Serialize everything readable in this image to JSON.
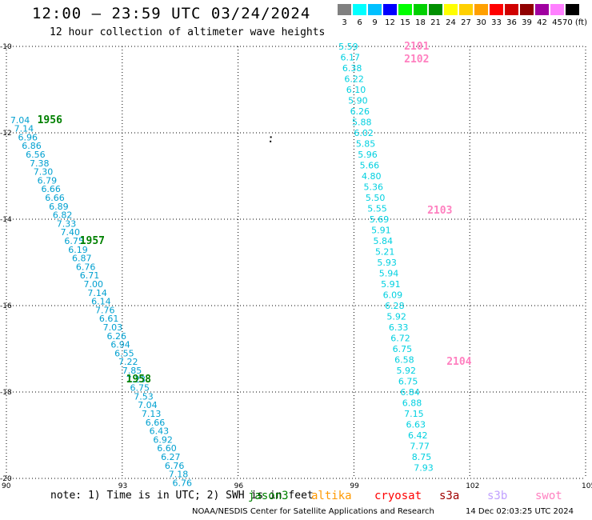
{
  "header": {
    "title": "12:00 – 23:59 UTC 03/24/2024",
    "subtitle": "12 hour collection of altimeter wave heights"
  },
  "colorbar": {
    "labels": [
      "3",
      "6",
      "9",
      "12",
      "15",
      "18",
      "21",
      "24",
      "27",
      "30",
      "33",
      "36",
      "39",
      "42",
      "45",
      "70 (ft)"
    ],
    "colors": [
      "#808080",
      "#00ffff",
      "#00c0ff",
      "#0000ff",
      "#00ff00",
      "#00d000",
      "#009000",
      "#ffff00",
      "#ffd000",
      "#ffa000",
      "#ff0000",
      "#d00000",
      "#900000",
      "#a000a0",
      "#ff80ff",
      "#000000"
    ]
  },
  "axes": {
    "x_ticks": [
      "90",
      "93",
      "96",
      "99",
      "102",
      "105"
    ],
    "y_ticks": [
      "-10",
      "-12",
      "-14",
      "-16",
      "-18",
      "-20"
    ],
    "x_values": [
      90,
      93,
      96,
      99,
      102,
      105
    ],
    "y_values": [
      -10,
      -12,
      -14,
      -16,
      -18,
      -20
    ],
    "xlim": [
      90,
      105
    ],
    "ylim": [
      -20,
      -10
    ]
  },
  "tracks": [
    {
      "pass_labels": [
        {
          "text": "1956",
          "lon": 90.8,
          "lat": -11.7,
          "color": "#008000"
        },
        {
          "text": "1957",
          "lon": 91.9,
          "lat": -14.5,
          "color": "#008000"
        },
        {
          "text": "1958",
          "lon": 93.1,
          "lat": -17.7,
          "color": "#008000"
        }
      ],
      "color": "#00a0d0",
      "points": [
        {
          "lon": 90.1,
          "lat": -11.7,
          "v": "7.04"
        },
        {
          "lon": 90.2,
          "lat": -11.9,
          "v": "7.14"
        },
        {
          "lon": 90.3,
          "lat": -12.1,
          "v": "6.96"
        },
        {
          "lon": 90.4,
          "lat": -12.3,
          "v": "6.86"
        },
        {
          "lon": 90.5,
          "lat": -12.5,
          "v": "6.56"
        },
        {
          "lon": 90.6,
          "lat": -12.7,
          "v": "7.38"
        },
        {
          "lon": 90.7,
          "lat": -12.9,
          "v": "7.30"
        },
        {
          "lon": 90.8,
          "lat": -13.1,
          "v": "6.79"
        },
        {
          "lon": 90.9,
          "lat": -13.3,
          "v": "6.66"
        },
        {
          "lon": 91.0,
          "lat": -13.5,
          "v": "6.66"
        },
        {
          "lon": 91.1,
          "lat": -13.7,
          "v": "6.89"
        },
        {
          "lon": 91.2,
          "lat": -13.9,
          "v": "6.82"
        },
        {
          "lon": 91.3,
          "lat": -14.1,
          "v": "7.33"
        },
        {
          "lon": 91.4,
          "lat": -14.3,
          "v": "7.40"
        },
        {
          "lon": 91.5,
          "lat": -14.5,
          "v": "6.75"
        },
        {
          "lon": 91.6,
          "lat": -14.7,
          "v": "6.19"
        },
        {
          "lon": 91.7,
          "lat": -14.9,
          "v": "6.87"
        },
        {
          "lon": 91.8,
          "lat": -15.1,
          "v": "6.76"
        },
        {
          "lon": 91.9,
          "lat": -15.3,
          "v": "6.71"
        },
        {
          "lon": 92.0,
          "lat": -15.5,
          "v": "7.00"
        },
        {
          "lon": 92.1,
          "lat": -15.7,
          "v": "7.14"
        },
        {
          "lon": 92.2,
          "lat": -15.9,
          "v": "6.14"
        },
        {
          "lon": 92.3,
          "lat": -16.1,
          "v": "7.76"
        },
        {
          "lon": 92.4,
          "lat": -16.3,
          "v": "6.61"
        },
        {
          "lon": 92.5,
          "lat": -16.5,
          "v": "7.03"
        },
        {
          "lon": 92.6,
          "lat": -16.7,
          "v": "6.26"
        },
        {
          "lon": 92.7,
          "lat": -16.9,
          "v": "6.94"
        },
        {
          "lon": 92.8,
          "lat": -17.1,
          "v": "6.55"
        },
        {
          "lon": 92.9,
          "lat": -17.3,
          "v": "7.22"
        },
        {
          "lon": 93.0,
          "lat": -17.5,
          "v": "7.85"
        },
        {
          "lon": 93.1,
          "lat": -17.7,
          "v": "7.23"
        },
        {
          "lon": 93.2,
          "lat": -17.9,
          "v": "6.75"
        },
        {
          "lon": 93.3,
          "lat": -18.1,
          "v": "7.53"
        },
        {
          "lon": 93.4,
          "lat": -18.3,
          "v": "7.04"
        },
        {
          "lon": 93.5,
          "lat": -18.5,
          "v": "7.13"
        },
        {
          "lon": 93.6,
          "lat": -18.7,
          "v": "6.66"
        },
        {
          "lon": 93.7,
          "lat": -18.9,
          "v": "6.43"
        },
        {
          "lon": 93.8,
          "lat": -19.1,
          "v": "6.92"
        },
        {
          "lon": 93.9,
          "lat": -19.3,
          "v": "6.60"
        },
        {
          "lon": 94.0,
          "lat": -19.5,
          "v": "6.27"
        },
        {
          "lon": 94.1,
          "lat": -19.7,
          "v": "6.76"
        },
        {
          "lon": 94.2,
          "lat": -19.9,
          "v": "7.18"
        },
        {
          "lon": 94.3,
          "lat": -20.1,
          "v": "6.76"
        }
      ]
    },
    {
      "pass_labels": [
        {
          "text": "2101",
          "lon": 100.3,
          "lat": -10.0,
          "color": "#ff80c0"
        },
        {
          "text": "2102",
          "lon": 100.3,
          "lat": -10.3,
          "color": "#ff80c0"
        },
        {
          "text": "2103",
          "lon": 100.9,
          "lat": -13.8,
          "color": "#ff80c0"
        },
        {
          "text": "2104",
          "lon": 101.4,
          "lat": -17.3,
          "color": "#ff80c0"
        }
      ],
      "color": "#00d0e0",
      "points": [
        {
          "lon": 98.6,
          "lat": -10.0,
          "v": "5.59"
        },
        {
          "lon": 98.65,
          "lat": -10.25,
          "v": "6.17"
        },
        {
          "lon": 98.7,
          "lat": -10.5,
          "v": "6.38"
        },
        {
          "lon": 98.75,
          "lat": -10.75,
          "v": "6.22"
        },
        {
          "lon": 98.8,
          "lat": -11.0,
          "v": "6.10"
        },
        {
          "lon": 98.85,
          "lat": -11.25,
          "v": "5.90"
        },
        {
          "lon": 98.9,
          "lat": -11.5,
          "v": "6.26"
        },
        {
          "lon": 98.95,
          "lat": -11.75,
          "v": "5.88"
        },
        {
          "lon": 99.0,
          "lat": -12.0,
          "v": "6.02"
        },
        {
          "lon": 99.05,
          "lat": -12.25,
          "v": "5.85"
        },
        {
          "lon": 99.1,
          "lat": -12.5,
          "v": "5.96"
        },
        {
          "lon": 99.15,
          "lat": -12.75,
          "v": "5.66"
        },
        {
          "lon": 99.2,
          "lat": -13.0,
          "v": "4.80"
        },
        {
          "lon": 99.25,
          "lat": -13.25,
          "v": "5.36"
        },
        {
          "lon": 99.3,
          "lat": -13.5,
          "v": "5.50"
        },
        {
          "lon": 99.35,
          "lat": -13.75,
          "v": "5.55"
        },
        {
          "lon": 99.4,
          "lat": -14.0,
          "v": "5.69"
        },
        {
          "lon": 99.45,
          "lat": -14.25,
          "v": "5.91"
        },
        {
          "lon": 99.5,
          "lat": -14.5,
          "v": "5.84"
        },
        {
          "lon": 99.55,
          "lat": -14.75,
          "v": "5.21"
        },
        {
          "lon": 99.6,
          "lat": -15.0,
          "v": "5.93"
        },
        {
          "lon": 99.65,
          "lat": -15.25,
          "v": "5.94"
        },
        {
          "lon": 99.7,
          "lat": -15.5,
          "v": "5.91"
        },
        {
          "lon": 99.75,
          "lat": -15.75,
          "v": "6.09"
        },
        {
          "lon": 99.8,
          "lat": -16.0,
          "v": "6.28"
        },
        {
          "lon": 99.85,
          "lat": -16.25,
          "v": "5.92"
        },
        {
          "lon": 99.9,
          "lat": -16.5,
          "v": "6.33"
        },
        {
          "lon": 99.95,
          "lat": -16.75,
          "v": "6.72"
        },
        {
          "lon": 100.0,
          "lat": -17.0,
          "v": "6.75"
        },
        {
          "lon": 100.05,
          "lat": -17.25,
          "v": "6.58"
        },
        {
          "lon": 100.1,
          "lat": -17.5,
          "v": "5.92"
        },
        {
          "lon": 100.15,
          "lat": -17.75,
          "v": "6.75"
        },
        {
          "lon": 100.2,
          "lat": -18.0,
          "v": "6.84"
        },
        {
          "lon": 100.25,
          "lat": -18.25,
          "v": "6.88"
        },
        {
          "lon": 100.3,
          "lat": -18.5,
          "v": "7.15"
        },
        {
          "lon": 100.35,
          "lat": -18.75,
          "v": "6.63"
        },
        {
          "lon": 100.4,
          "lat": -19.0,
          "v": "6.42"
        },
        {
          "lon": 100.45,
          "lat": -19.25,
          "v": "7.77"
        },
        {
          "lon": 100.5,
          "lat": -19.5,
          "v": "8.75"
        },
        {
          "lon": 100.55,
          "lat": -19.75,
          "v": "7.93"
        }
      ]
    }
  ],
  "islands": [
    {
      "lon": 96.85,
      "lat": -12.1
    },
    {
      "lon": 96.84,
      "lat": -12.2
    }
  ],
  "note": "note: 1) Time is in UTC; 2) SWH is in feet",
  "satellites": [
    {
      "name": "jason3",
      "color": "#008000"
    },
    {
      "name": "altika",
      "color": "#ff9900"
    },
    {
      "name": "cryosat",
      "color": "#ff0000"
    },
    {
      "name": "s3a",
      "color": "#a00000"
    },
    {
      "name": "s3b",
      "color": "#c0a0ff"
    },
    {
      "name": "swot",
      "color": "#ff80c0"
    }
  ],
  "footer": {
    "credit": "NOAA/NESDIS Center for Satellite Applications and Research",
    "time": "14 Dec 02:03:25 UTC 2024"
  }
}
